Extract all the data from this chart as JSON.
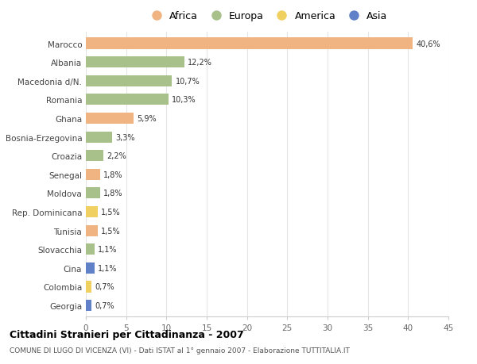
{
  "countries": [
    "Marocco",
    "Albania",
    "Macedonia d/N.",
    "Romania",
    "Ghana",
    "Bosnia-Erzegovina",
    "Croazia",
    "Senegal",
    "Moldova",
    "Rep. Dominicana",
    "Tunisia",
    "Slovacchia",
    "Cina",
    "Colombia",
    "Georgia"
  ],
  "values": [
    40.6,
    12.2,
    10.7,
    10.3,
    5.9,
    3.3,
    2.2,
    1.8,
    1.8,
    1.5,
    1.5,
    1.1,
    1.1,
    0.7,
    0.7
  ],
  "labels": [
    "40,6%",
    "12,2%",
    "10,7%",
    "10,3%",
    "5,9%",
    "3,3%",
    "2,2%",
    "1,8%",
    "1,8%",
    "1,5%",
    "1,5%",
    "1,1%",
    "1,1%",
    "0,7%",
    "0,7%"
  ],
  "continents": [
    "Africa",
    "Europa",
    "Europa",
    "Europa",
    "Africa",
    "Europa",
    "Europa",
    "Africa",
    "Europa",
    "America",
    "Africa",
    "Europa",
    "Asia",
    "America",
    "Asia"
  ],
  "colors": {
    "Africa": "#F0B482",
    "Europa": "#A8C08A",
    "America": "#F0D060",
    "Asia": "#6080C8"
  },
  "legend_order": [
    "Africa",
    "Europa",
    "America",
    "Asia"
  ],
  "title": "Cittadini Stranieri per Cittadinanza - 2007",
  "subtitle": "COMUNE DI LUGO DI VICENZA (VI) - Dati ISTAT al 1° gennaio 2007 - Elaborazione TUTTITALIA.IT",
  "xlim": [
    0,
    45
  ],
  "xticks": [
    0,
    5,
    10,
    15,
    20,
    25,
    30,
    35,
    40,
    45
  ],
  "bg_color": "#FFFFFF",
  "grid_color": "#E5E5E5",
  "bar_height": 0.6
}
